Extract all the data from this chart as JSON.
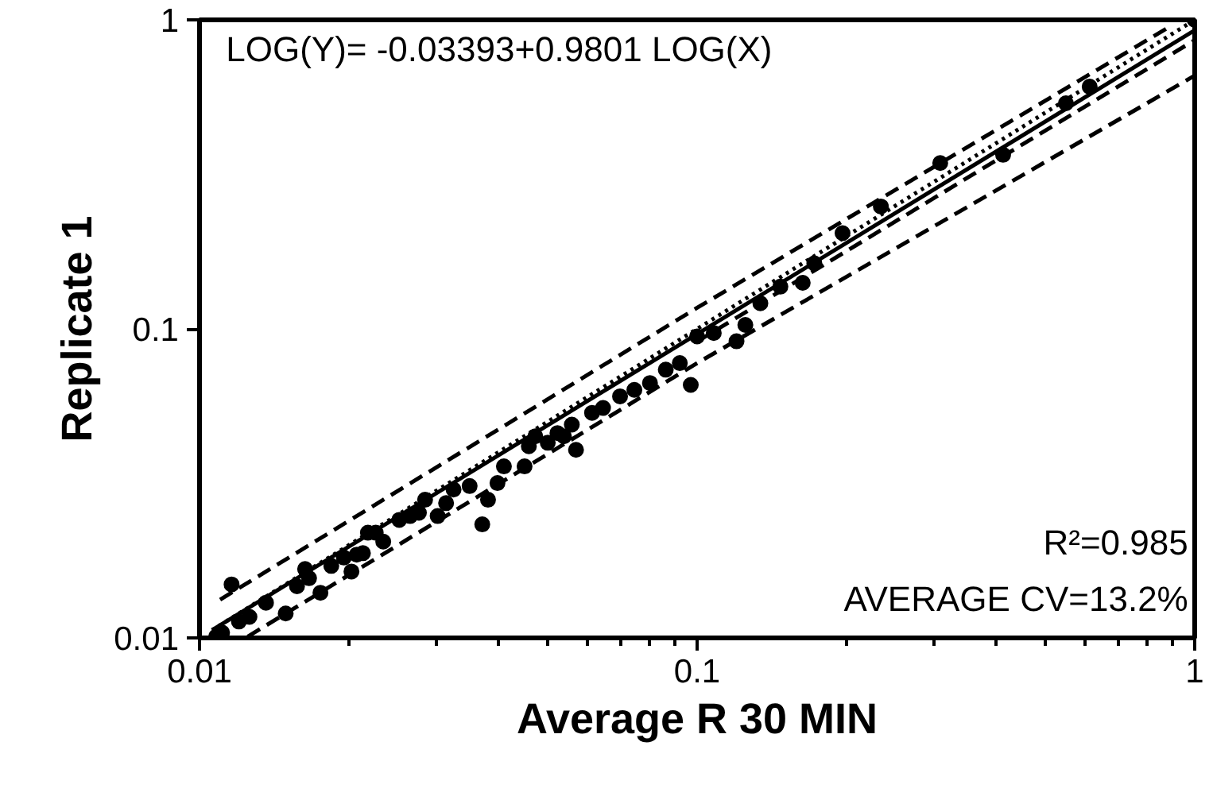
{
  "chart_data": {
    "type": "scatter",
    "xlabel": "Average R 30 MIN",
    "ylabel": "Replicate 1",
    "annotations": [
      "LOG(Y)= -0.03393+0.9801 LOG(X)",
      "R²=0.985",
      "AVERAGE CV=13.2%"
    ],
    "log": "xy",
    "grid": false,
    "xlim": [
      0.01,
      1
    ],
    "ylim": [
      0.01,
      1
    ],
    "xticks": [
      0.01,
      {
        "value": 0.02,
        "label": null
      },
      {
        "value": 0.03,
        "label": null
      },
      {
        "value": 0.04,
        "label": null
      },
      {
        "value": 0.05,
        "label": null
      },
      {
        "value": 0.06,
        "label": null
      },
      {
        "value": 0.07,
        "label": null
      },
      {
        "value": 0.08,
        "label": null
      },
      {
        "value": 0.09,
        "label": null
      },
      0.1,
      {
        "value": 0.2,
        "label": null
      },
      {
        "value": 0.3,
        "label": null
      },
      {
        "value": 0.4,
        "label": null
      },
      {
        "value": 0.5,
        "label": null
      },
      {
        "value": 0.6,
        "label": null
      },
      {
        "value": 0.7,
        "label": null
      },
      {
        "value": 0.8,
        "label": null
      },
      {
        "value": 0.9,
        "label": null
      },
      1
    ],
    "yticks": [
      0.01,
      0.1,
      1
    ],
    "series": [
      {
        "color": "#000000",
        "marker": "circle",
        "x": [
          0.0108,
          0.0111,
          0.0116,
          0.012,
          0.0126,
          0.0136,
          0.0149,
          0.0157,
          0.0163,
          0.0166,
          0.0175,
          0.0184,
          0.0195,
          0.0202,
          0.0207,
          0.0213,
          0.0218,
          0.0226,
          0.0234,
          0.0252,
          0.0265,
          0.0276,
          0.0284,
          0.0301,
          0.0313,
          0.0324,
          0.0349,
          0.037,
          0.038,
          0.0397,
          0.0409,
          0.045,
          0.0459,
          0.0473,
          0.0501,
          0.0524,
          0.054,
          0.056,
          0.0571,
          0.0615,
          0.0647,
          0.07,
          0.0748,
          0.0804,
          0.0865,
          0.0923,
          0.0971,
          0.1,
          0.108,
          0.12,
          0.125,
          0.134,
          0.147,
          0.163,
          0.172,
          0.196,
          0.234,
          0.308,
          0.412,
          0.551,
          0.615,
          1.0
        ],
        "values": [
          0.0101,
          0.0104,
          0.0149,
          0.0113,
          0.0117,
          0.013,
          0.012,
          0.0147,
          0.0167,
          0.0156,
          0.014,
          0.0171,
          0.0182,
          0.0164,
          0.0186,
          0.0188,
          0.0219,
          0.0219,
          0.0205,
          0.0241,
          0.0248,
          0.0254,
          0.028,
          0.0248,
          0.0273,
          0.0302,
          0.031,
          0.0233,
          0.028,
          0.0317,
          0.0359,
          0.0359,
          0.0417,
          0.0449,
          0.0428,
          0.046,
          0.0449,
          0.049,
          0.0406,
          0.0535,
          0.0555,
          0.0605,
          0.0635,
          0.0668,
          0.0738,
          0.0775,
          0.0659,
          0.0946,
          0.097,
          0.0912,
          0.103,
          0.121,
          0.137,
          0.141,
          0.163,
          0.204,
          0.249,
          0.344,
          0.366,
          0.537,
          0.608,
          1.0
        ]
      },
      {
        "type": "line",
        "color": "#000000",
        "line_style": "solid",
        "x": [
          0.0106,
          1
        ],
        "values": [
          0.0106,
          0.925
        ]
      },
      {
        "type": "line",
        "color": "#000000",
        "line_style": "dotted",
        "x": [
          0.0106,
          1
        ],
        "values": [
          0.0106,
          1
        ]
      },
      {
        "type": "line",
        "color": "#000000",
        "line_style": "dashed",
        "x": [
          0.011,
          0.1,
          0.9
        ],
        "values": [
          0.0133,
          0.117,
          0.96
        ]
      },
      {
        "type": "line",
        "color": "#000000",
        "line_style": "dashed",
        "x": [
          0.0125,
          0.1,
          1
        ],
        "values": [
          0.0101,
          0.0775,
          0.66
        ]
      },
      {
        "type": "line",
        "color": "#000000",
        "line_style": "dashed",
        "x": [
          0.1,
          1
        ],
        "values": [
          0.091,
          0.86
        ]
      }
    ]
  }
}
